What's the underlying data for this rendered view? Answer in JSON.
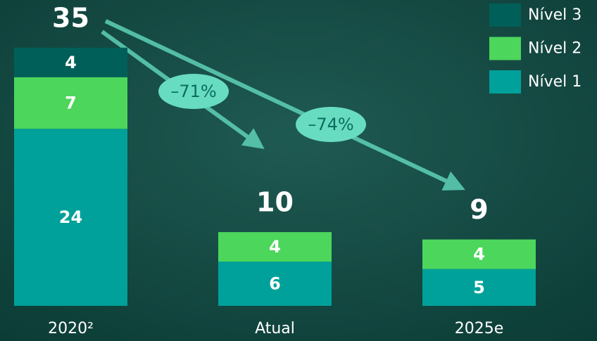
{
  "chart_data": {
    "type": "stacked_bar",
    "categories": [
      "2020²",
      "Atual",
      "2025e"
    ],
    "series": [
      {
        "name": "Nível 1",
        "color": "#00a19a",
        "values": [
          24,
          6,
          5
        ]
      },
      {
        "name": "Nível 2",
        "color": "#4cd65c",
        "values": [
          7,
          4,
          4
        ]
      },
      {
        "name": "Nível 3",
        "color": "#006059",
        "values": [
          4,
          null,
          null
        ]
      }
    ],
    "totals": [
      35,
      10,
      9
    ],
    "annotations": [
      "–71%",
      "–74%"
    ],
    "legend": "top-right"
  }
}
